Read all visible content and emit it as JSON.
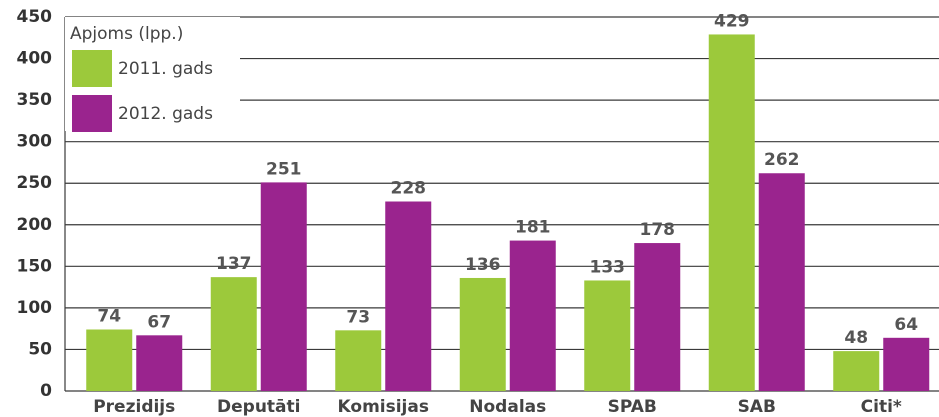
{
  "chart_data": {
    "type": "bar",
    "legend_title": "Apjoms (lpp.)",
    "categories": [
      "Prezidijs",
      "Deputāti",
      "Komisijas",
      "Nodalas",
      "SPAB",
      "SAB",
      "Citi*"
    ],
    "series": [
      {
        "name": "2011. gads",
        "color": "#9cc93b",
        "values": [
          74,
          137,
          73,
          136,
          133,
          429,
          48
        ]
      },
      {
        "name": "2012. gads",
        "color": "#9a248e",
        "values": [
          67,
          251,
          228,
          181,
          178,
          262,
          64
        ]
      }
    ],
    "ylim": [
      0,
      450
    ],
    "yticks": [
      0,
      50,
      100,
      150,
      200,
      250,
      300,
      350,
      400,
      450
    ],
    "grid": true,
    "legend": "upper left"
  }
}
